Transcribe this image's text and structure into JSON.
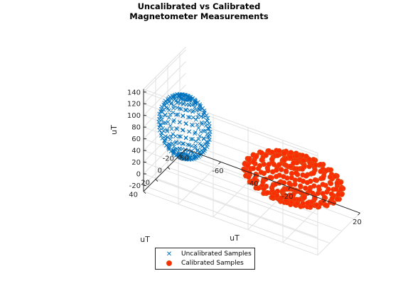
{
  "title": [
    "Uncalibrated vs Calibrated",
    "Magnetometer Measurements"
  ],
  "colors": {
    "uncalibrated": "#0072bd",
    "calibrated_fill": "#ff2b00",
    "calibrated_edge": "#d95319",
    "grid": "#e0e0e0",
    "axis": "#262626"
  },
  "legend": {
    "uncalibrated_label": "Uncalibrated Samples",
    "calibrated_label": "Calibrated Samples",
    "placement": "bottom-center-outside"
  },
  "chart_data": {
    "type": "scatter",
    "projection": "3d",
    "title": "Uncalibrated vs Calibrated Magnetometer Measurements",
    "xlabel": "uT",
    "ylabel": "uT",
    "zlabel": "uT",
    "xlim": [
      -80,
      20
    ],
    "ylim": [
      -30,
      40
    ],
    "zlim": [
      -30,
      145
    ],
    "x_ticks": [
      -80,
      -60,
      -40,
      -20,
      0,
      20
    ],
    "x_tick_labels": [
      "-80",
      "-60",
      "-40",
      "-20",
      "",
      "20"
    ],
    "y_ticks": [
      -20,
      0,
      20,
      40
    ],
    "y_tick_labels": [
      "-20",
      "0",
      "20",
      "40"
    ],
    "z_ticks": [
      -20,
      0,
      20,
      40,
      60,
      80,
      100,
      120,
      140
    ],
    "z_tick_labels": [
      "-20",
      "0",
      "20",
      "40",
      "60",
      "80",
      "100",
      "120",
      "140"
    ],
    "grid": true,
    "series": [
      {
        "name": "Uncalibrated Samples",
        "marker": "x",
        "shape": "ellipsoid",
        "center": [
          -60,
          30,
          92
        ],
        "radii": [
          14,
          14,
          52
        ]
      },
      {
        "name": "Calibrated Samples",
        "marker": "filled-circle",
        "shape": "sphere",
        "center": [
          -12,
          -12,
          12
        ],
        "radii": [
          27,
          27,
          27
        ]
      }
    ]
  }
}
